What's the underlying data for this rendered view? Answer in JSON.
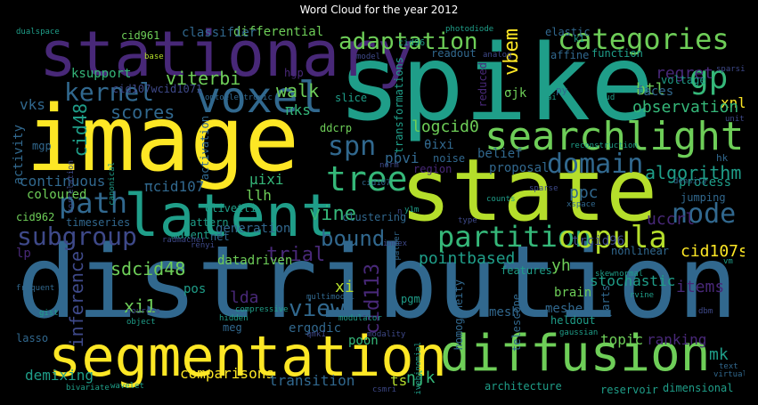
{
  "title": "Word Cloud for the year 2012",
  "palette": {
    "yellow": "#fde725",
    "lime": "#b5de2b",
    "green": "#6ece58",
    "teal_green": "#35b779",
    "teal": "#1f9e89",
    "cyan_blue": "#26828e",
    "blue": "#31688e",
    "indigo": "#3e4989",
    "purple": "#482878",
    "dark_purple": "#440154"
  },
  "words": [
    {
      "text": "spike",
      "color": "teal"
    },
    {
      "text": "image",
      "color": "yellow"
    },
    {
      "text": "state",
      "color": "lime"
    },
    {
      "text": "distribution",
      "color": "blue"
    },
    {
      "text": "stationary",
      "color": "purple"
    },
    {
      "text": "latent",
      "color": "teal"
    },
    {
      "text": "voxel",
      "color": "blue"
    },
    {
      "text": "segmentation",
      "color": "yellow"
    },
    {
      "text": "diffusion",
      "color": "green"
    },
    {
      "text": "searchlight",
      "color": "green"
    },
    {
      "text": "categories",
      "color": "green"
    },
    {
      "text": "adaptation",
      "color": "green"
    },
    {
      "text": "partition",
      "color": "teal_green"
    },
    {
      "text": "copula",
      "color": "lime"
    },
    {
      "text": "tree",
      "color": "teal_green"
    },
    {
      "text": "node",
      "color": "blue"
    },
    {
      "text": "gp",
      "color": "teal_green"
    },
    {
      "text": "kernel",
      "color": "blue"
    },
    {
      "text": "path",
      "color": "blue"
    },
    {
      "text": "spn",
      "color": "blue"
    },
    {
      "text": "domain",
      "color": "blue"
    },
    {
      "text": "subgroup",
      "color": "indigo"
    },
    {
      "text": "bound",
      "color": "blue"
    },
    {
      "text": "view",
      "color": "blue"
    },
    {
      "text": "viterbi",
      "color": "green"
    },
    {
      "text": "scores",
      "color": "blue"
    },
    {
      "text": "walk",
      "color": "green"
    },
    {
      "text": "vbem",
      "color": "yellow"
    },
    {
      "text": "btl",
      "color": "green"
    },
    {
      "text": "regret",
      "color": "purple"
    },
    {
      "text": "xnl",
      "color": "yellow"
    },
    {
      "text": "observation",
      "color": "teal_green"
    },
    {
      "text": "logcid0",
      "color": "green"
    },
    {
      "text": "vine",
      "color": "teal_green"
    },
    {
      "text": "trial",
      "color": "purple"
    },
    {
      "text": "cid113",
      "color": "purple"
    },
    {
      "text": "sdcid48",
      "color": "green"
    },
    {
      "text": "cid48",
      "color": "teal"
    },
    {
      "text": "continuous",
      "color": "blue"
    },
    {
      "text": "algorithm",
      "color": "teal"
    },
    {
      "text": "uccrl",
      "color": "purple"
    },
    {
      "text": "ppc",
      "color": "blue"
    },
    {
      "text": "cid107sp",
      "color": "yellow"
    },
    {
      "text": "items",
      "color": "purple"
    },
    {
      "text": "process",
      "color": "teal"
    },
    {
      "text": "pointbased",
      "color": "teal"
    },
    {
      "text": "trcid96",
      "color": "indigo"
    },
    {
      "text": "yh",
      "color": "green"
    },
    {
      "text": "stochastic",
      "color": "teal"
    },
    {
      "text": "inference",
      "color": "indigo"
    },
    {
      "text": "xi1",
      "color": "green"
    },
    {
      "text": "topic",
      "color": "green"
    },
    {
      "text": "ranking",
      "color": "purple"
    },
    {
      "text": "mk",
      "color": "teal"
    },
    {
      "text": "comparisons",
      "color": "yellow"
    },
    {
      "text": "demixing",
      "color": "teal"
    },
    {
      "text": "transition",
      "color": "blue"
    },
    {
      "text": "ts",
      "color": "lime"
    },
    {
      "text": "ηjk",
      "color": "teal_green"
    },
    {
      "text": "architecture",
      "color": "teal"
    },
    {
      "text": "reservoir",
      "color": "teal"
    },
    {
      "text": "dimensional",
      "color": "teal"
    },
    {
      "text": "differential",
      "color": "green"
    },
    {
      "text": "classifier",
      "color": "blue"
    },
    {
      "text": "cid961",
      "color": "green"
    },
    {
      "text": "vks",
      "color": "blue"
    },
    {
      "text": "ksupport",
      "color": "teal_green"
    },
    {
      "text": "activity",
      "color": "blue"
    },
    {
      "text": "πcid107",
      "color": "blue"
    },
    {
      "text": "μixi",
      "color": "teal_green"
    },
    {
      "text": "llh",
      "color": "green"
    },
    {
      "text": "olivetti",
      "color": "teal"
    },
    {
      "text": "ddcrp",
      "color": "green"
    },
    {
      "text": "θixi",
      "color": "blue"
    },
    {
      "text": "pbvi",
      "color": "blue"
    },
    {
      "text": "noise",
      "color": "blue"
    },
    {
      "text": "belief",
      "color": "blue"
    },
    {
      "text": "proposal",
      "color": "blue"
    },
    {
      "text": "σjk",
      "color": "green"
    },
    {
      "text": "faces",
      "color": "blue"
    },
    {
      "text": "voltage",
      "color": "teal"
    },
    {
      "text": "πks",
      "color": "teal_green"
    },
    {
      "text": "generation",
      "color": "blue"
    },
    {
      "text": "coloured",
      "color": "green"
    },
    {
      "text": "datadriven",
      "color": "green"
    },
    {
      "text": "lda",
      "color": "purple"
    },
    {
      "text": "xi",
      "color": "lime"
    },
    {
      "text": "pos",
      "color": "teal"
    },
    {
      "text": "lp",
      "color": "purple"
    },
    {
      "text": "cid962",
      "color": "green"
    },
    {
      "text": "nonlinear",
      "color": "blue"
    },
    {
      "text": "jumping",
      "color": "blue"
    },
    {
      "text": "brain",
      "color": "green"
    },
    {
      "text": "meshes",
      "color": "blue"
    },
    {
      "text": "heldout",
      "color": "teal"
    },
    {
      "text": "mesh",
      "color": "blue"
    },
    {
      "text": "ergodic",
      "color": "blue"
    },
    {
      "text": "poon",
      "color": "teal_green"
    },
    {
      "text": "telescope",
      "color": "blue"
    },
    {
      "text": "parts",
      "color": "blue"
    },
    {
      "text": "features",
      "color": "teal"
    },
    {
      "text": "homogeneity",
      "color": "blue"
    },
    {
      "text": "transformations",
      "color": "teal"
    },
    {
      "text": "reduced",
      "color": "purple"
    },
    {
      "text": "activation",
      "color": "blue"
    },
    {
      "text": "maxent",
      "color": "teal"
    },
    {
      "text": "pattern",
      "color": "teal"
    },
    {
      "text": "clustering",
      "color": "blue"
    },
    {
      "text": "timeseries",
      "color": "blue"
    },
    {
      "text": "elastic",
      "color": "blue"
    },
    {
      "text": "affine",
      "color": "blue"
    },
    {
      "text": "function",
      "color": "teal"
    },
    {
      "text": "readout",
      "color": "blue"
    },
    {
      "text": "slice",
      "color": "teal"
    },
    {
      "text": "hgp",
      "color": "purple"
    },
    {
      "text": "cid107wcid1071",
      "color": "indigo"
    },
    {
      "text": "region",
      "color": "purple"
    },
    {
      "text": "mgp",
      "color": "blue"
    },
    {
      "text": "net",
      "color": "blue"
    },
    {
      "text": "meg",
      "color": "blue"
    },
    {
      "text": "lasso",
      "color": "blue"
    },
    {
      "text": "pgm",
      "color": "teal"
    },
    {
      "text": "dualspace",
      "color": "teal"
    },
    {
      "text": "photodiode",
      "color": "teal"
    },
    {
      "text": "cid96",
      "color": "teal"
    },
    {
      "text": "k1",
      "color": "teal"
    },
    {
      "text": "py",
      "color": "blue"
    },
    {
      "text": "hk",
      "color": "blue"
    },
    {
      "text": "xspace",
      "color": "blue"
    },
    {
      "text": "density",
      "color": "blue"
    },
    {
      "text": "sparsity",
      "color": "indigo"
    },
    {
      "text": "units",
      "color": "indigo"
    },
    {
      "text": "skewnormal",
      "color": "teal"
    },
    {
      "text": "rvine",
      "color": "teal"
    },
    {
      "text": "gaussian",
      "color": "teal"
    },
    {
      "text": "vm",
      "color": "teal"
    },
    {
      "text": "text",
      "color": "blue"
    },
    {
      "text": "virtual",
      "color": "blue"
    },
    {
      "text": "dbm",
      "color": "indigo"
    },
    {
      "text": "wavelet",
      "color": "teal"
    },
    {
      "text": "bivariate",
      "color": "teal"
    },
    {
      "text": "csmri",
      "color": "indigo"
    },
    {
      "text": "modality",
      "color": "indigo"
    },
    {
      "text": "compressive",
      "color": "teal"
    },
    {
      "text": "multimodal",
      "color": "blue"
    },
    {
      "text": "object",
      "color": "teal"
    },
    {
      "text": "hidden",
      "color": "teal"
    },
    {
      "text": "sources",
      "color": "indigo"
    },
    {
      "text": "gist",
      "color": "teal"
    },
    {
      "text": "frequent",
      "color": "blue"
    },
    {
      "text": "correlation",
      "color": "indigo"
    },
    {
      "text": "canonical",
      "color": "teal"
    },
    {
      "text": "optoelectronic",
      "color": "blue"
    },
    {
      "text": "base",
      "color": "lime"
    },
    {
      "text": "analog",
      "color": "indigo"
    },
    {
      "text": "model",
      "color": "indigo"
    },
    {
      "text": "gud",
      "color": "teal"
    },
    {
      "text": "reconstruction",
      "color": "teal"
    },
    {
      "text": "sparse",
      "color": "indigo"
    },
    {
      "text": "index",
      "color": "indigo"
    },
    {
      "text": "counts",
      "color": "teal"
    },
    {
      "text": "type",
      "color": "indigo"
    },
    {
      "text": "modulator",
      "color": "teal"
    },
    {
      "text": "negativebinomial",
      "color": "teal"
    },
    {
      "text": "palmer",
      "color": "blue"
    },
    {
      "text": "radmacher",
      "color": "indigo"
    },
    {
      "text": "renyi",
      "color": "indigo"
    },
    {
      "text": "η",
      "color": "indigo"
    },
    {
      "text": "qmk1",
      "color": "indigo"
    },
    {
      "text": "norm",
      "color": "indigo"
    },
    {
      "text": "y1m",
      "color": "teal"
    },
    {
      "text": "cid107",
      "color": "blue"
    },
    {
      "text": "ai",
      "color": "teal"
    }
  ]
}
